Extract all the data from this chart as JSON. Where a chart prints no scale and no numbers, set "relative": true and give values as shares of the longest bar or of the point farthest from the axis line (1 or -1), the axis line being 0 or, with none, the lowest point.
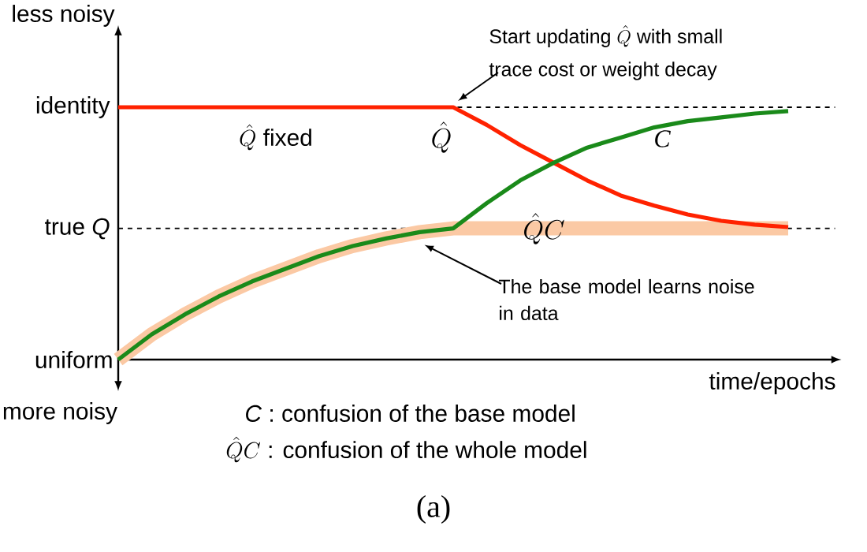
{
  "chart_data": {
    "type": "line",
    "xlabel": "time/epochs",
    "categories": [
      null,
      null,
      null,
      null,
      null,
      null,
      null,
      null,
      null,
      null,
      null,
      null,
      null,
      null,
      null,
      null,
      null,
      null,
      null,
      null,
      null
    ],
    "relative": true,
    "series": [
      {
        "name": "\\hat{Q}C",
        "color": "#fbc9a4",
        "values": [
          0,
          0.1,
          0.18,
          0.25,
          0.31,
          0.36,
          0.41,
          0.45,
          0.48,
          0.505,
          0.52,
          0.52,
          0.52,
          0.52,
          0.52,
          0.52,
          0.52,
          0.52,
          0.52,
          0.52,
          0.52
        ]
      },
      {
        "name": "\\hat{Q}",
        "color": "#ff2200",
        "values": [
          1,
          1,
          1,
          1,
          1,
          1,
          1,
          1,
          1,
          1,
          1,
          0.93,
          0.85,
          0.78,
          0.71,
          0.65,
          0.61,
          0.575,
          0.55,
          0.535,
          0.525
        ]
      },
      {
        "name": "C",
        "color": "#1a8a1a",
        "values": [
          0,
          0.1,
          0.18,
          0.25,
          0.31,
          0.36,
          0.41,
          0.45,
          0.48,
          0.505,
          0.52,
          0.62,
          0.71,
          0.78,
          0.84,
          0.88,
          0.92,
          0.945,
          0.96,
          0.975,
          0.985
        ]
      }
    ],
    "ref_lines": [
      {
        "axis": "y",
        "value": 1,
        "line_style": "dashed",
        "color": "#000000"
      },
      {
        "axis": "y",
        "value": 0.52,
        "line_style": "dashed",
        "color": "#000000"
      }
    ],
    "annotations": [
      "less noisy",
      "more noisy",
      "\\hat{Q}\\mbox{ fixed}",
      "\\mbox{Start updating }\\hat{Q}\\mbox{ with small}",
      "trace cost or weight decay",
      "The base model learns noise in data",
      "*C* :  confusion of the base model",
      "\\hat{Q}C\\mbox{ :  confusion of the whole model}",
      "(a)",
      "identity",
      "true *Q*",
      "uniform"
    ],
    "marker": "none",
    "line_style": "solid"
  }
}
